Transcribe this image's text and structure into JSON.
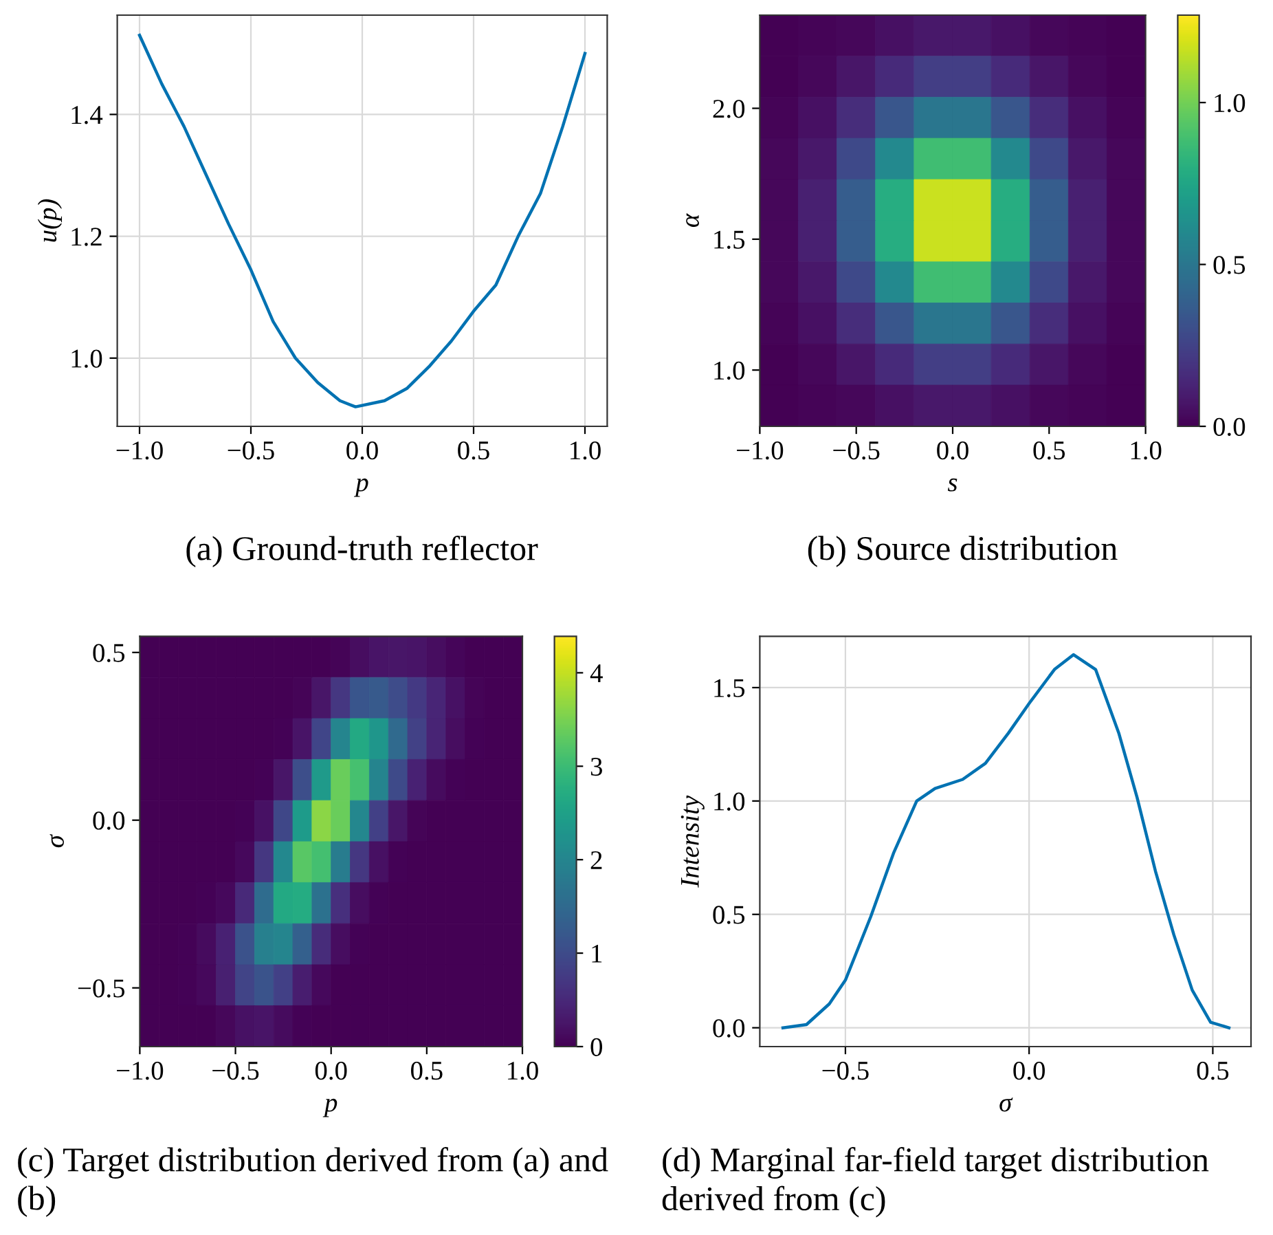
{
  "chart_data": [
    {
      "type": "line",
      "xlabel": "p",
      "ylabel": "u(p)",
      "annotations": [
        "(a) Ground-truth reflector"
      ],
      "grid": true,
      "xlim": [
        -1.1,
        1.1
      ],
      "ylim": [
        0.888,
        1.563
      ],
      "xticks": [
        {
          "value": -1,
          "label": "−1.0"
        },
        {
          "value": -0.5,
          "label": "−0.5"
        },
        {
          "value": 0,
          "label": "0.0"
        },
        {
          "value": 0.5,
          "label": "0.5"
        },
        {
          "value": 1,
          "label": "1.0"
        }
      ],
      "yticks": [
        {
          "value": 1,
          "label": "1.0"
        },
        1.2,
        1.4
      ],
      "series": [
        {
          "color": "#0072b2",
          "x": [
            -1,
            -0.9,
            -0.8,
            -0.7,
            -0.6,
            -0.5,
            -0.4,
            -0.3,
            -0.2,
            -0.1,
            -0.03,
            0.1,
            0.2,
            0.3,
            0.4,
            0.5,
            0.6,
            0.7,
            0.8,
            0.9,
            1.0
          ],
          "values": [
            1.53,
            1.45,
            1.38,
            1.3,
            1.22,
            1.145,
            1.06,
            1.0,
            0.96,
            0.93,
            0.92,
            0.93,
            0.95,
            0.986,
            1.028,
            1.077,
            1.12,
            1.2,
            1.27,
            1.38,
            1.5
          ]
        }
      ]
    },
    {
      "type": "heatmap",
      "xlabel": "s",
      "ylabel": "α",
      "annotations": [
        "(b) Source distribution"
      ],
      "xlim": [
        -1,
        1
      ],
      "ylim": [
        0.785,
        2.356
      ],
      "xticks": [
        {
          "value": -1,
          "label": "−1.0"
        },
        {
          "value": -0.5,
          "label": "−0.5"
        },
        {
          "value": 0,
          "label": "0.0"
        },
        {
          "value": 0.5,
          "label": "0.5"
        },
        {
          "value": 1,
          "label": "1.0"
        }
      ],
      "yticks": [
        {
          "value": 1,
          "label": "1.0"
        },
        1.5,
        {
          "value": 2,
          "label": "2.0"
        }
      ],
      "clim": [
        0,
        1.27
      ],
      "cticks": [
        {
          "value": 0,
          "label": "0.0"
        },
        0.5,
        {
          "value": 1,
          "label": "1.0"
        }
      ],
      "x": [
        -0.9,
        -0.7,
        -0.5,
        -0.3,
        -0.1,
        0.1,
        0.3,
        0.5,
        0.7,
        0.9
      ],
      "y": [
        2.277,
        2.121,
        1.964,
        1.807,
        1.649,
        1.492,
        1.335,
        1.178,
        1.021,
        0.864
      ],
      "cells": [
        [
          0,
          0.01,
          0.02,
          0.05,
          0.08,
          0.08,
          0.05,
          0.02,
          0.01,
          0
        ],
        [
          0,
          0.02,
          0.07,
          0.15,
          0.23,
          0.23,
          0.15,
          0.07,
          0.02,
          0
        ],
        [
          0.01,
          0.05,
          0.16,
          0.34,
          0.5,
          0.5,
          0.34,
          0.16,
          0.05,
          0.01
        ],
        [
          0.02,
          0.08,
          0.28,
          0.6,
          0.88,
          0.88,
          0.6,
          0.28,
          0.08,
          0.02
        ],
        [
          0.02,
          0.11,
          0.37,
          0.79,
          1.17,
          1.17,
          0.79,
          0.37,
          0.11,
          0.02
        ],
        [
          0.02,
          0.11,
          0.37,
          0.79,
          1.17,
          1.17,
          0.79,
          0.37,
          0.11,
          0.02
        ],
        [
          0.02,
          0.08,
          0.28,
          0.6,
          0.88,
          0.88,
          0.6,
          0.28,
          0.08,
          0.02
        ],
        [
          0.01,
          0.05,
          0.16,
          0.34,
          0.5,
          0.5,
          0.34,
          0.16,
          0.05,
          0.01
        ],
        [
          0,
          0.02,
          0.07,
          0.15,
          0.23,
          0.23,
          0.15,
          0.07,
          0.02,
          0
        ],
        [
          0,
          0.01,
          0.02,
          0.05,
          0.08,
          0.08,
          0.05,
          0.02,
          0.01,
          0
        ]
      ]
    },
    {
      "type": "heatmap",
      "xlabel": "p",
      "ylabel": "σ",
      "annotations": [
        "(c) Target distribution derived from (a) and (b)"
      ],
      "xlim": [
        -1,
        1
      ],
      "ylim": [
        -0.675,
        0.548
      ],
      "xticks": [
        {
          "value": -1,
          "label": "−1.0"
        },
        {
          "value": -0.5,
          "label": "−0.5"
        },
        {
          "value": 0,
          "label": "0.0"
        },
        {
          "value": 0.5,
          "label": "0.5"
        },
        {
          "value": 1,
          "label": "1.0"
        }
      ],
      "yticks": [
        {
          "value": -0.5,
          "label": "−0.5"
        },
        {
          "value": 0,
          "label": "0.0"
        },
        0.5
      ],
      "clim": [
        0,
        4.39
      ],
      "cticks": [
        0,
        1,
        2,
        3,
        4
      ],
      "x": [
        -0.95,
        -0.85,
        -0.75,
        -0.65,
        -0.55,
        -0.45,
        -0.35,
        -0.25,
        -0.15,
        -0.05,
        0.05,
        0.15,
        0.25,
        0.35,
        0.45,
        0.55,
        0.65,
        0.75,
        0.85,
        0.95
      ],
      "y": [
        0.487,
        0.364,
        0.242,
        0.12,
        -0.003,
        -0.125,
        -0.247,
        -0.37,
        -0.492,
        -0.614
      ],
      "cells": [
        [
          0,
          0,
          0,
          0,
          0,
          0,
          0,
          0,
          0,
          0,
          0.05,
          0.15,
          0.23,
          0.25,
          0.23,
          0.15,
          0.06,
          0.01,
          0,
          0
        ],
        [
          0,
          0,
          0,
          0,
          0,
          0,
          0,
          0,
          0.05,
          0.25,
          0.7,
          1.15,
          1.23,
          1.0,
          0.73,
          0.45,
          0.19,
          0.04,
          0,
          0
        ],
        [
          0,
          0,
          0,
          0,
          0,
          0,
          0,
          0.03,
          0.23,
          0.9,
          2.0,
          2.65,
          2.3,
          1.5,
          0.85,
          0.43,
          0.15,
          0.03,
          0,
          0
        ],
        [
          0,
          0,
          0,
          0,
          0,
          0,
          0.03,
          0.25,
          1.03,
          2.38,
          3.38,
          3.1,
          1.98,
          0.98,
          0.4,
          0.13,
          0.03,
          0,
          0,
          0
        ],
        [
          0,
          0,
          0,
          0,
          0,
          0.03,
          0.2,
          0.93,
          2.4,
          3.63,
          3.38,
          2.03,
          0.83,
          0.25,
          0.05,
          0,
          0,
          0,
          0,
          0
        ],
        [
          0,
          0,
          0,
          0,
          0,
          0.1,
          0.7,
          2.05,
          3.25,
          3.08,
          1.83,
          0.7,
          0.18,
          0.03,
          0,
          0,
          0,
          0,
          0,
          0
        ],
        [
          0,
          0,
          0,
          0.03,
          0.1,
          0.5,
          1.53,
          2.65,
          2.7,
          1.63,
          0.6,
          0.15,
          0.03,
          0,
          0,
          0,
          0,
          0,
          0,
          0
        ],
        [
          0,
          0,
          0.03,
          0.13,
          0.4,
          1.1,
          1.9,
          2.0,
          1.33,
          0.54,
          0.14,
          0.03,
          0,
          0,
          0,
          0,
          0,
          0,
          0,
          0
        ],
        [
          0,
          0,
          0.03,
          0.1,
          0.38,
          0.88,
          1.13,
          0.83,
          0.35,
          0.09,
          0.01,
          0,
          0,
          0,
          0,
          0,
          0,
          0,
          0,
          0
        ],
        [
          0,
          0,
          0,
          0,
          0.08,
          0.2,
          0.23,
          0.13,
          0.03,
          0,
          0,
          0,
          0,
          0,
          0,
          0,
          0,
          0,
          0,
          0
        ]
      ]
    },
    {
      "type": "line",
      "xlabel": "σ",
      "ylabel": "Intensity",
      "annotations": [
        "(d) Marginal far-field target distribution derived from (c)"
      ],
      "grid": true,
      "xlim": [
        -0.733,
        0.604
      ],
      "ylim": [
        -0.083,
        1.726
      ],
      "xticks": [
        {
          "value": -0.5,
          "label": "−0.5"
        },
        {
          "value": 0,
          "label": "0.0"
        },
        0.5
      ],
      "yticks": [
        {
          "value": 0,
          "label": "0.0"
        },
        0.5,
        {
          "value": 1,
          "label": "1.0"
        },
        1.5
      ],
      "series": [
        {
          "color": "#0072b2",
          "x": [
            -0.67,
            -0.606,
            -0.544,
            -0.5,
            -0.431,
            -0.369,
            -0.306,
            -0.256,
            -0.181,
            -0.119,
            -0.056,
            0,
            0.069,
            0.121,
            0.181,
            0.244,
            0.294,
            0.344,
            0.394,
            0.444,
            0.494,
            0.544
          ],
          "values": [
            0,
            0.014,
            0.105,
            0.21,
            0.49,
            0.77,
            1.0,
            1.055,
            1.095,
            1.166,
            1.3,
            1.43,
            1.58,
            1.645,
            1.58,
            1.3,
            1.015,
            0.69,
            0.41,
            0.166,
            0.024,
            0
          ]
        }
      ]
    }
  ]
}
